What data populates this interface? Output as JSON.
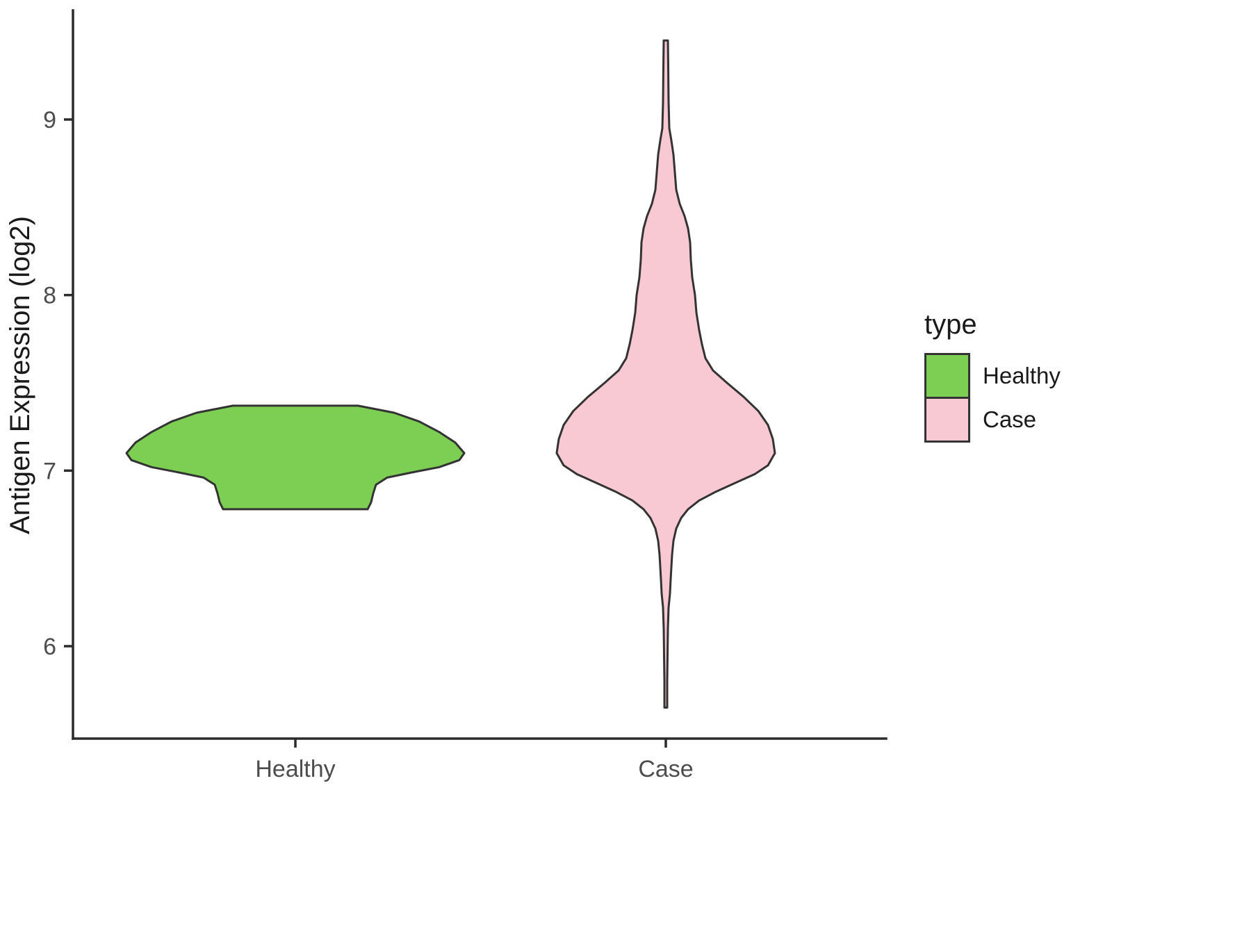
{
  "chart_data": {
    "type": "violin",
    "title": "",
    "xlabel": "",
    "ylabel": "Antigen Expression (log2)",
    "categories": [
      "Healthy",
      "Case"
    ],
    "y_ticks": [
      6,
      7,
      8,
      9
    ],
    "ylim": [
      5.45,
      9.7
    ],
    "grid": false,
    "legend": {
      "title": "type",
      "position": "right",
      "entries": [
        {
          "label": "Healthy",
          "color": "#7ccf52"
        },
        {
          "label": "Case",
          "color": "#f8c8d3"
        }
      ]
    },
    "colors": {
      "outline": "#333333",
      "axis": "#2b2b2b",
      "tick_label": "#4d4d4d",
      "axis_title": "#1a1a1a",
      "background": "#ffffff"
    },
    "profile_units": "y value (log2) vs half-width in canvas px",
    "series": [
      {
        "name": "Healthy",
        "fill": "#7ccf52",
        "outline": "#333333",
        "center_value": 7.1,
        "y_range": [
          6.78,
          7.37
        ],
        "profile": [
          [
            7.37,
            90
          ],
          [
            7.33,
            142
          ],
          [
            7.28,
            178
          ],
          [
            7.22,
            207
          ],
          [
            7.16,
            230
          ],
          [
            7.1,
            243
          ],
          [
            7.06,
            236
          ],
          [
            7.02,
            207
          ],
          [
            6.99,
            168
          ],
          [
            6.96,
            132
          ],
          [
            6.92,
            116
          ],
          [
            6.87,
            112
          ],
          [
            6.82,
            109
          ],
          [
            6.78,
            104
          ]
        ]
      },
      {
        "name": "Case",
        "fill": "#f8c8d3",
        "outline": "#333333",
        "center_value": 7.1,
        "y_range": [
          5.65,
          9.45
        ],
        "profile": [
          [
            9.45,
            3
          ],
          [
            9.3,
            3.5
          ],
          [
            9.1,
            4
          ],
          [
            8.95,
            5
          ],
          [
            8.88,
            8
          ],
          [
            8.8,
            11
          ],
          [
            8.7,
            13
          ],
          [
            8.6,
            15
          ],
          [
            8.52,
            20
          ],
          [
            8.45,
            27
          ],
          [
            8.38,
            32
          ],
          [
            8.3,
            35
          ],
          [
            8.2,
            36
          ],
          [
            8.1,
            38
          ],
          [
            8.0,
            42
          ],
          [
            7.9,
            44
          ],
          [
            7.8,
            48
          ],
          [
            7.72,
            52
          ],
          [
            7.64,
            57
          ],
          [
            7.57,
            68
          ],
          [
            7.5,
            88
          ],
          [
            7.42,
            112
          ],
          [
            7.34,
            133
          ],
          [
            7.26,
            147
          ],
          [
            7.18,
            154
          ],
          [
            7.1,
            157
          ],
          [
            7.03,
            147
          ],
          [
            6.98,
            128
          ],
          [
            6.93,
            100
          ],
          [
            6.88,
            72
          ],
          [
            6.83,
            48
          ],
          [
            6.78,
            32
          ],
          [
            6.73,
            22
          ],
          [
            6.67,
            15
          ],
          [
            6.6,
            11
          ],
          [
            6.52,
            9
          ],
          [
            6.45,
            8
          ],
          [
            6.38,
            7
          ],
          [
            6.3,
            6
          ],
          [
            6.22,
            4
          ],
          [
            6.1,
            3
          ],
          [
            5.95,
            2.5
          ],
          [
            5.8,
            2
          ],
          [
            5.65,
            2
          ]
        ]
      }
    ]
  }
}
